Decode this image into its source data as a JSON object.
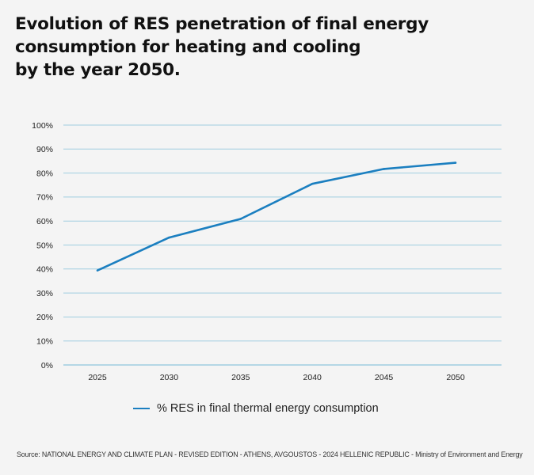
{
  "title_lines": [
    "Evolution of RES penetration of final energy",
    "consumption for heating and cooling",
    "by the year 2050."
  ],
  "source": "Source: NATIONAL ENERGY AND CLIMATE PLAN - REVISED EDITION - ATHENS, AVGOUSTOS - 2024 HELLENIC REPUBLIC - Ministry of Environment and Energy",
  "colors": {
    "series": "#1b7fc0",
    "grid": "#9fcde0",
    "background": "#f4f4f4"
  },
  "chart_data": {
    "type": "line",
    "title": "Evolution of RES penetration of final energy consumption for heating and cooling by the year 2050.",
    "xlabel": "",
    "ylabel": "",
    "categories": [
      "2025",
      "2030",
      "2035",
      "2040",
      "2045",
      "2050"
    ],
    "series": [
      {
        "name": "% RES in final thermal energy consumption",
        "values": [
          39.4,
          53.1,
          60.9,
          75.5,
          81.7,
          84.3
        ]
      }
    ],
    "ylim": [
      0,
      100
    ],
    "yticks": [
      0,
      10,
      20,
      30,
      40,
      50,
      60,
      70,
      80,
      90,
      100
    ],
    "ytick_labels": [
      "0%",
      "10%",
      "20%",
      "30%",
      "40%",
      "50%",
      "60%",
      "70%",
      "80%",
      "90%",
      "100%"
    ],
    "grid": true,
    "legend_position": "bottom-center"
  }
}
